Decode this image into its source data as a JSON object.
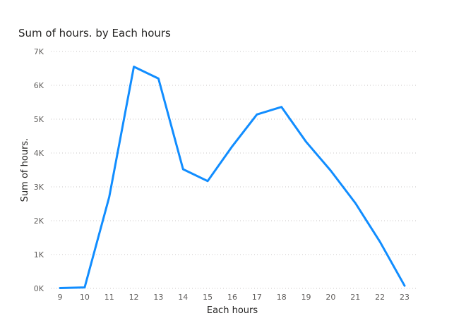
{
  "chart_data": {
    "type": "line",
    "title": "Sum of hours. by Each hours",
    "xlabel": "Each hours",
    "ylabel": "Sum of hours.",
    "x": [
      9,
      10,
      11,
      12,
      13,
      14,
      15,
      16,
      17,
      18,
      19,
      20,
      21,
      22,
      23
    ],
    "series": [
      {
        "values": [
          10,
          30,
          2700,
          6550,
          6200,
          3520,
          3170,
          4200,
          5140,
          5360,
          4330,
          3480,
          2520,
          1380,
          80
        ]
      }
    ],
    "ylim": [
      0,
      7000
    ],
    "yticks": [
      {
        "value": 0,
        "label": "0K"
      },
      {
        "value": 1000,
        "label": "1K"
      },
      {
        "value": 2000,
        "label": "2K"
      },
      {
        "value": 3000,
        "label": "3K"
      },
      {
        "value": 4000,
        "label": "4K"
      },
      {
        "value": 5000,
        "label": "5K"
      },
      {
        "value": 6000,
        "label": "6K"
      },
      {
        "value": 7000,
        "label": "7K"
      }
    ],
    "xticks": [
      "9",
      "10",
      "11",
      "12",
      "13",
      "14",
      "15",
      "16",
      "17",
      "18",
      "19",
      "20",
      "21",
      "22",
      "23"
    ],
    "line_color": "#118DFF",
    "grid": true,
    "legend": "none"
  }
}
